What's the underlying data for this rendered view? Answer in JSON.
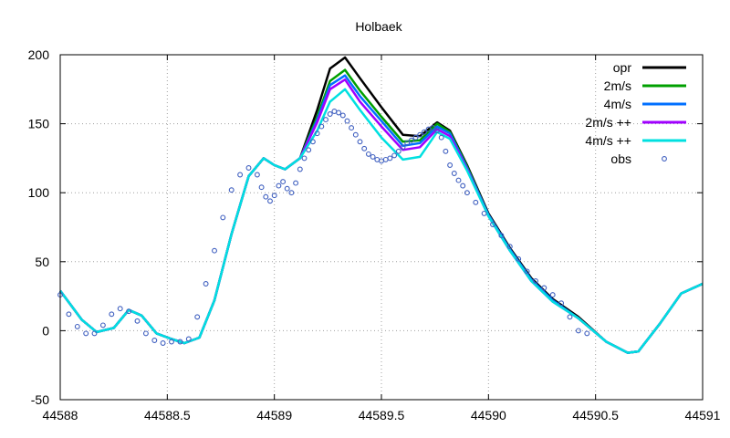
{
  "chart_data": {
    "type": "line",
    "title": "Holbaek",
    "xlabel": "",
    "ylabel": "",
    "xlim": [
      44588,
      44591
    ],
    "ylim": [
      -50,
      200
    ],
    "grid": true,
    "legend_position": "top-right",
    "x_ticks": [
      {
        "value": 44588,
        "label": "44588"
      },
      {
        "value": 44588.5,
        "label": "44588.5"
      },
      {
        "value": 44589,
        "label": "44589"
      },
      {
        "value": 44589.5,
        "label": "44589.5"
      },
      {
        "value": 44590,
        "label": "44590"
      },
      {
        "value": 44590.5,
        "label": "44590.5"
      },
      {
        "value": 44591,
        "label": "44591"
      }
    ],
    "y_ticks": [
      {
        "value": -50,
        "label": "-50"
      },
      {
        "value": 0,
        "label": "0"
      },
      {
        "value": 50,
        "label": "50"
      },
      {
        "value": 100,
        "label": "100"
      },
      {
        "value": 150,
        "label": "150"
      },
      {
        "value": 200,
        "label": "200"
      }
    ],
    "series": [
      {
        "name": "opr",
        "color": "#000000",
        "style": "line",
        "x": [
          44588.0,
          44588.1,
          44588.17,
          44588.25,
          44588.32,
          44588.38,
          44588.45,
          44588.52,
          44588.58,
          44588.65,
          44588.72,
          44588.8,
          44588.88,
          44588.95,
          44589.0,
          44589.05,
          44589.12,
          44589.2,
          44589.26,
          44589.33,
          44589.4,
          44589.5,
          44589.6,
          44589.68,
          44589.76,
          44589.82,
          44589.9,
          44590.0,
          44590.1,
          44590.2,
          44590.3,
          44590.42,
          44590.55,
          44590.65,
          44590.7,
          44590.8,
          44590.9,
          44591.0
        ],
        "y": [
          29,
          8,
          -1,
          2,
          15,
          11,
          -2,
          -6,
          -9,
          -5,
          22,
          70,
          112,
          125,
          120,
          117,
          125,
          160,
          190,
          198,
          183,
          162,
          142,
          141,
          151,
          145,
          120,
          85,
          60,
          38,
          23,
          10,
          -8,
          -16,
          -15,
          5,
          27,
          34
        ]
      },
      {
        "name": "2m/s",
        "color": "#00a000",
        "style": "line",
        "x": [
          44588.0,
          44588.1,
          44588.17,
          44588.25,
          44588.32,
          44588.38,
          44588.45,
          44588.52,
          44588.58,
          44588.65,
          44588.72,
          44588.8,
          44588.88,
          44588.95,
          44589.0,
          44589.05,
          44589.12,
          44589.2,
          44589.26,
          44589.33,
          44589.4,
          44589.5,
          44589.6,
          44589.68,
          44589.76,
          44589.82,
          44589.9,
          44590.0,
          44590.1,
          44590.2,
          44590.3,
          44590.42,
          44590.55,
          44590.65,
          44590.7,
          44590.8,
          44590.9,
          44591.0
        ],
        "y": [
          29,
          8,
          -1,
          2,
          15,
          11,
          -2,
          -6,
          -9,
          -5,
          22,
          70,
          112,
          125,
          120,
          117,
          125,
          155,
          181,
          189,
          174,
          155,
          137,
          138,
          150,
          144,
          119,
          84,
          59,
          37,
          22,
          9,
          -8,
          -16,
          -15,
          5,
          27,
          34
        ]
      },
      {
        "name": "4m/s",
        "color": "#0070ff",
        "style": "line",
        "x": [
          44588.0,
          44588.1,
          44588.17,
          44588.25,
          44588.32,
          44588.38,
          44588.45,
          44588.52,
          44588.58,
          44588.65,
          44588.72,
          44588.8,
          44588.88,
          44588.95,
          44589.0,
          44589.05,
          44589.12,
          44589.2,
          44589.26,
          44589.33,
          44589.4,
          44589.5,
          44589.6,
          44589.68,
          44589.76,
          44589.82,
          44589.9,
          44590.0,
          44590.1,
          44590.2,
          44590.3,
          44590.42,
          44590.55,
          44590.65,
          44590.7,
          44590.8,
          44590.9,
          44591.0
        ],
        "y": [
          29,
          8,
          -1,
          2,
          15,
          11,
          -2,
          -6,
          -9,
          -5,
          22,
          70,
          112,
          125,
          120,
          117,
          125,
          153,
          178,
          185,
          170,
          152,
          134,
          136,
          148,
          143,
          118,
          84,
          59,
          37,
          22,
          9,
          -8,
          -16,
          -15,
          5,
          27,
          34
        ]
      },
      {
        "name": "2m/s ++",
        "color": "#a000ff",
        "style": "line",
        "x": [
          44588.0,
          44588.1,
          44588.17,
          44588.25,
          44588.32,
          44588.38,
          44588.45,
          44588.52,
          44588.58,
          44588.65,
          44588.72,
          44588.8,
          44588.88,
          44588.95,
          44589.0,
          44589.05,
          44589.12,
          44589.2,
          44589.26,
          44589.33,
          44589.4,
          44589.5,
          44589.6,
          44589.68,
          44589.76,
          44589.82,
          44589.9,
          44590.0,
          44590.1,
          44590.2,
          44590.3,
          44590.42,
          44590.55,
          44590.65,
          44590.7,
          44590.8,
          44590.9,
          44591.0
        ],
        "y": [
          29,
          8,
          -1,
          2,
          15,
          11,
          -2,
          -6,
          -9,
          -5,
          22,
          70,
          112,
          125,
          120,
          117,
          125,
          151,
          175,
          182,
          166,
          148,
          131,
          133,
          146,
          141,
          117,
          83,
          58,
          36,
          21,
          9,
          -8,
          -16,
          -15,
          5,
          27,
          34
        ]
      },
      {
        "name": "4m/s ++",
        "color": "#00e0e0",
        "style": "line",
        "x": [
          44588.0,
          44588.1,
          44588.17,
          44588.25,
          44588.32,
          44588.38,
          44588.45,
          44588.52,
          44588.58,
          44588.65,
          44588.72,
          44588.8,
          44588.88,
          44588.95,
          44589.0,
          44589.05,
          44589.12,
          44589.2,
          44589.26,
          44589.33,
          44589.4,
          44589.5,
          44589.6,
          44589.68,
          44589.76,
          44589.82,
          44589.9,
          44590.0,
          44590.1,
          44590.2,
          44590.3,
          44590.42,
          44590.55,
          44590.65,
          44590.7,
          44590.8,
          44590.9,
          44591.0
        ],
        "y": [
          29,
          8,
          -1,
          2,
          15,
          11,
          -2,
          -6,
          -9,
          -5,
          22,
          70,
          112,
          125,
          120,
          117,
          125,
          145,
          166,
          175,
          160,
          140,
          124,
          126,
          144,
          139,
          116,
          83,
          58,
          36,
          21,
          9,
          -8,
          -16,
          -15,
          5,
          27,
          34
        ]
      },
      {
        "name": "obs",
        "color": "#4060c0",
        "style": "points",
        "x": [
          44588.0,
          44588.04,
          44588.08,
          44588.12,
          44588.16,
          44588.2,
          44588.24,
          44588.28,
          44588.32,
          44588.36,
          44588.4,
          44588.44,
          44588.48,
          44588.52,
          44588.56,
          44588.6,
          44588.64,
          44588.68,
          44588.72,
          44588.76,
          44588.8,
          44588.84,
          44588.88,
          44588.92,
          44588.94,
          44588.96,
          44588.98,
          44589.0,
          44589.02,
          44589.04,
          44589.06,
          44589.08,
          44589.1,
          44589.12,
          44589.14,
          44589.16,
          44589.18,
          44589.2,
          44589.22,
          44589.24,
          44589.26,
          44589.28,
          44589.3,
          44589.32,
          44589.34,
          44589.36,
          44589.38,
          44589.4,
          44589.42,
          44589.44,
          44589.46,
          44589.48,
          44589.5,
          44589.52,
          44589.54,
          44589.56,
          44589.58,
          44589.6,
          44589.62,
          44589.64,
          44589.66,
          44589.68,
          44589.7,
          44589.72,
          44589.74,
          44589.76,
          44589.78,
          44589.8,
          44589.82,
          44589.84,
          44589.86,
          44589.88,
          44589.9,
          44589.94,
          44589.98,
          44590.02,
          44590.06,
          44590.1,
          44590.14,
          44590.18,
          44590.22,
          44590.26,
          44590.3,
          44590.34,
          44590.38,
          44590.42,
          44590.46
        ],
        "y": [
          26,
          12,
          3,
          -2,
          -2,
          4,
          12,
          16,
          14,
          7,
          -2,
          -7,
          -9,
          -8,
          -8,
          -6,
          10,
          34,
          58,
          82,
          102,
          113,
          118,
          113,
          104,
          97,
          94,
          98,
          105,
          108,
          103,
          100,
          107,
          117,
          125,
          131,
          137,
          143,
          148,
          153,
          157,
          159,
          158,
          156,
          152,
          147,
          142,
          137,
          132,
          128,
          126,
          124,
          123,
          124,
          125,
          127,
          130,
          133,
          136,
          138,
          140,
          142,
          144,
          146,
          147,
          145,
          140,
          130,
          120,
          114,
          109,
          105,
          100,
          93,
          85,
          77,
          69,
          61,
          52,
          43,
          36,
          31,
          26,
          20,
          10,
          0,
          -2
        ]
      }
    ]
  }
}
